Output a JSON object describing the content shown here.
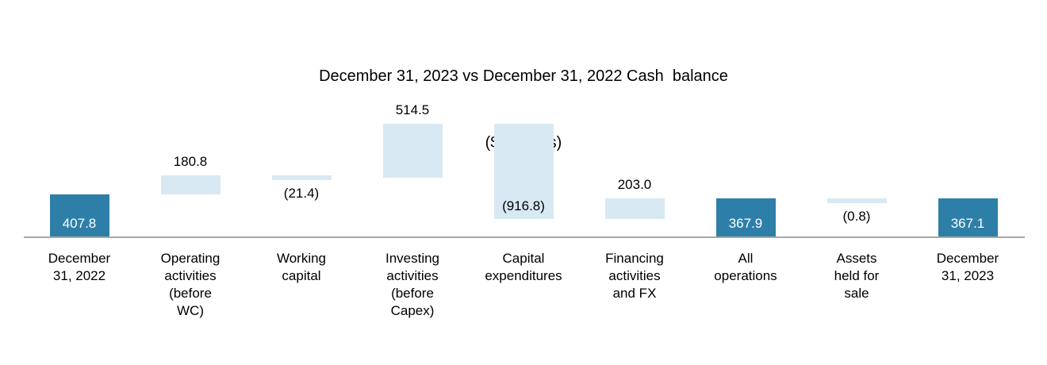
{
  "title": {
    "line1": "December 31, 2023 vs December 31, 2022 Cash  balance",
    "line2": "($ millions)"
  },
  "colors": {
    "dark_bar": "#2E7FA8",
    "light_bar": "#D8E9F3",
    "axis_line": "#A6A6A6",
    "label_on_dark": "#FFFFFF",
    "label_text": "#000000"
  },
  "chart_data": {
    "type": "bar",
    "subtype": "waterfall",
    "title": "December 31, 2023 vs December 31, 2022 Cash  balance ($ millions)",
    "unit": "$ millions",
    "legend": "none",
    "gridlines": false,
    "y_axis_visible": false,
    "bars": [
      {
        "category": "December\n31, 2022",
        "label": "407.8",
        "value": 407.8,
        "kind": "total",
        "start": 0,
        "end": 407.8,
        "label_position": "inside"
      },
      {
        "category": "Operating\nactivities\n(before\nWC)",
        "label": "180.8",
        "value": 180.8,
        "kind": "increase",
        "start": 407.8,
        "end": 588.6,
        "label_position": "above"
      },
      {
        "category": "Working\ncapital",
        "label": "(21.4)",
        "value": -21.4,
        "kind": "decrease",
        "start": 588.6,
        "end": 567.2,
        "label_position": "below"
      },
      {
        "category": "Investing\nactivities\n(before\nCapex)",
        "label": "514.5",
        "value": 514.5,
        "kind": "increase",
        "start": 567.2,
        "end": 1081.7,
        "label_position": "above"
      },
      {
        "category": "Capital\nexpenditures",
        "label": "(916.8)",
        "value": -916.8,
        "kind": "decrease",
        "start": 1081.7,
        "end": 164.9,
        "label_position": "inside-bottom"
      },
      {
        "category": "Financing\nactivities\nand FX",
        "label": "203.0",
        "value": 203.0,
        "kind": "increase",
        "start": 164.9,
        "end": 367.9,
        "label_position": "above"
      },
      {
        "category": "All\noperations",
        "label": "367.9",
        "value": 367.9,
        "kind": "total",
        "start": 0,
        "end": 367.9,
        "label_position": "inside"
      },
      {
        "category": "Assets\nheld for\nsale",
        "label": "(0.8)",
        "value": -0.8,
        "kind": "decrease",
        "start": 367.9,
        "end": 367.1,
        "label_position": "below"
      },
      {
        "category": "December\n31, 2023",
        "label": "367.1",
        "value": 367.1,
        "kind": "total",
        "start": 0,
        "end": 367.1,
        "label_position": "inside"
      }
    ]
  }
}
